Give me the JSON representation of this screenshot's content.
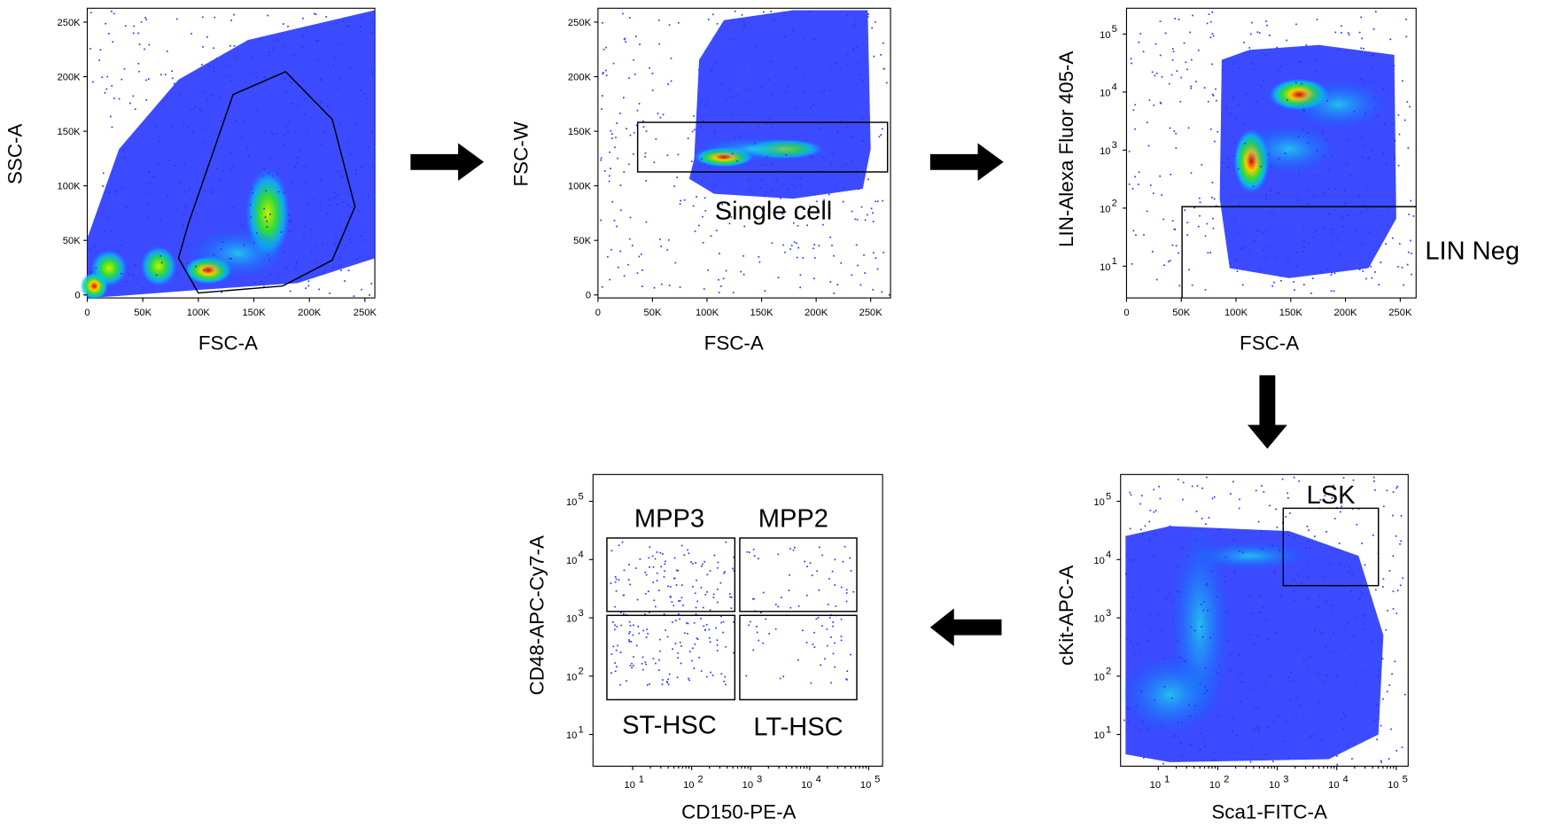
{
  "panels": [
    {
      "x_label": "FSC-A",
      "y_label": "SSC-A",
      "x_tick_labels": [
        "0",
        "50K",
        "100K",
        "150K",
        "200K",
        "250K"
      ],
      "y_tick_labels": [
        "0",
        "50K",
        "100K",
        "150K",
        "200K",
        "250K"
      ],
      "gates": []
    },
    {
      "x_label": "FSC-A",
      "y_label": "FSC-W",
      "x_tick_labels": [
        "0",
        "50K",
        "100K",
        "150K",
        "200K",
        "250K"
      ],
      "y_tick_labels": [
        "0",
        "50K",
        "100K",
        "150K",
        "200K",
        "250K"
      ],
      "gates": [
        {
          "label": "Single cell"
        }
      ]
    },
    {
      "x_label": "FSC-A",
      "y_label": "LIN-Alexa Fluor 405-A",
      "x_tick_labels": [
        "0",
        "50K",
        "100K",
        "150K",
        "200K",
        "250K"
      ],
      "y_tick_base": "10",
      "y_tick_exponents": [
        "1",
        "2",
        "3",
        "4",
        "5"
      ],
      "gates": [
        {
          "label": "LIN Neg"
        }
      ]
    },
    {
      "x_label": "CD150-PE-A",
      "y_label": "CD48-APC-Cy7-A",
      "x_tick_base": "10",
      "x_tick_exponents": [
        "1",
        "2",
        "3",
        "4",
        "5"
      ],
      "y_tick_base": "10",
      "y_tick_exponents": [
        "1",
        "2",
        "3",
        "4",
        "5"
      ],
      "gates": [
        {
          "label": "MPP3"
        },
        {
          "label": "MPP2"
        },
        {
          "label": "ST-HSC"
        },
        {
          "label": "LT-HSC"
        }
      ]
    },
    {
      "x_label": "Sca1-FITC-A",
      "y_label": "cKit-APC-A",
      "x_tick_base": "10",
      "x_tick_exponents": [
        "1",
        "2",
        "3",
        "4",
        "5"
      ],
      "y_tick_base": "10",
      "y_tick_exponents": [
        "1",
        "2",
        "3",
        "4",
        "5"
      ],
      "gates": [
        {
          "label": "LSK"
        }
      ]
    }
  ]
}
